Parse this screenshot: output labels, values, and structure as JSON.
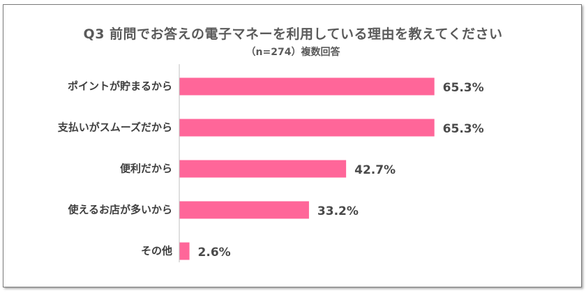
{
  "chart_data": {
    "type": "bar",
    "orientation": "horizontal",
    "title": "Q3 前問でお答えの電子マネーを利用している理由を教えてください",
    "subtitle": "（n=274）複数回答",
    "categories": [
      "ポイントが貯まるから",
      "支払いがスムーズだから",
      "便利だから",
      "使えるお店が多いから",
      "その他"
    ],
    "values": [
      65.3,
      65.3,
      42.7,
      33.2,
      2.6
    ],
    "value_labels": [
      "65.3%",
      "65.3%",
      "42.7%",
      "33.2%",
      "2.6%"
    ],
    "xlim": [
      0,
      100
    ],
    "grid": false,
    "legend": "none",
    "bar_color": "#ff6699",
    "axis_color": "#bfbfbf"
  }
}
